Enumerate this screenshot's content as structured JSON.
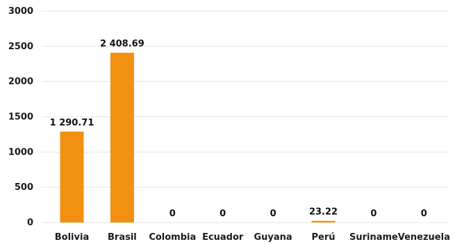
{
  "chart_data": {
    "type": "bar",
    "categories": [
      "Bolivia",
      "Brasil",
      "Colombia",
      "Ecuador",
      "Guyana",
      "Perú",
      "Suriname",
      "Venezuela"
    ],
    "values": [
      1290.71,
      2408.69,
      0,
      0,
      0,
      23.22,
      0,
      0
    ],
    "value_labels": [
      "1 290.71",
      "2 408.69",
      "0",
      "0",
      "0",
      "23.22",
      "0",
      "0"
    ],
    "ylim": [
      0,
      3000
    ],
    "yticks": [
      0,
      500,
      1000,
      1500,
      2000,
      2500,
      3000
    ],
    "bar_color": "#F29111",
    "grid": true,
    "legend": "none"
  }
}
